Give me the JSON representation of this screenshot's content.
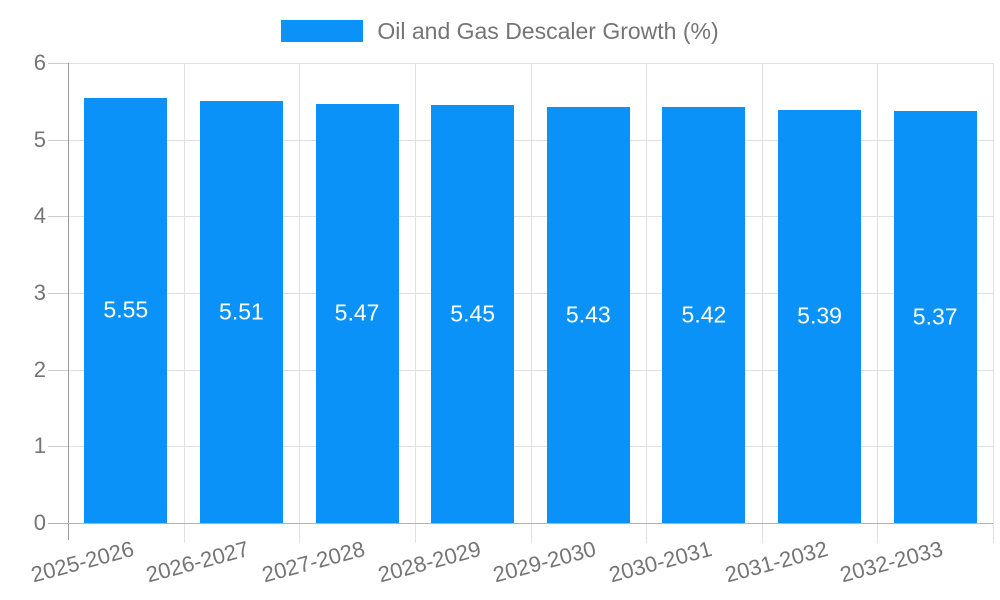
{
  "chart_data": {
    "type": "bar",
    "title": "Oil and Gas Descaler Growth (%)",
    "categories": [
      "2025-2026",
      "2026-2027",
      "2027-2028",
      "2028-2029",
      "2029-2030",
      "2030-2031",
      "2031-2032",
      "2032-2033"
    ],
    "series": [
      {
        "name": "Oil and Gas Descaler Growth (%)",
        "values": [
          5.55,
          5.51,
          5.47,
          5.45,
          5.43,
          5.42,
          5.39,
          5.37
        ]
      }
    ],
    "values": [
      5.55,
      5.51,
      5.47,
      5.45,
      5.43,
      5.42,
      5.39,
      5.37
    ],
    "bar_value_labels": [
      "5.55",
      "5.51",
      "5.47",
      "5.45",
      "5.43",
      "5.42",
      "5.39",
      "5.37"
    ],
    "xlabel": "",
    "ylabel": "",
    "ylim": [
      0,
      6
    ],
    "yticks": [
      0,
      1,
      2,
      3,
      4,
      5,
      6
    ],
    "grid": "on",
    "legend_position": "top-center",
    "colors": {
      "bar": "#0b92f8",
      "bar_label_text": "#ffffff",
      "gridline": "#e0e0e0",
      "axis_line": "#9a9a9a",
      "baseline": "#b3b3b3",
      "tick_mark": "#cccccc",
      "tick_label_text": "#757575",
      "legend_text": "#757575",
      "background": "#ffffff"
    }
  }
}
